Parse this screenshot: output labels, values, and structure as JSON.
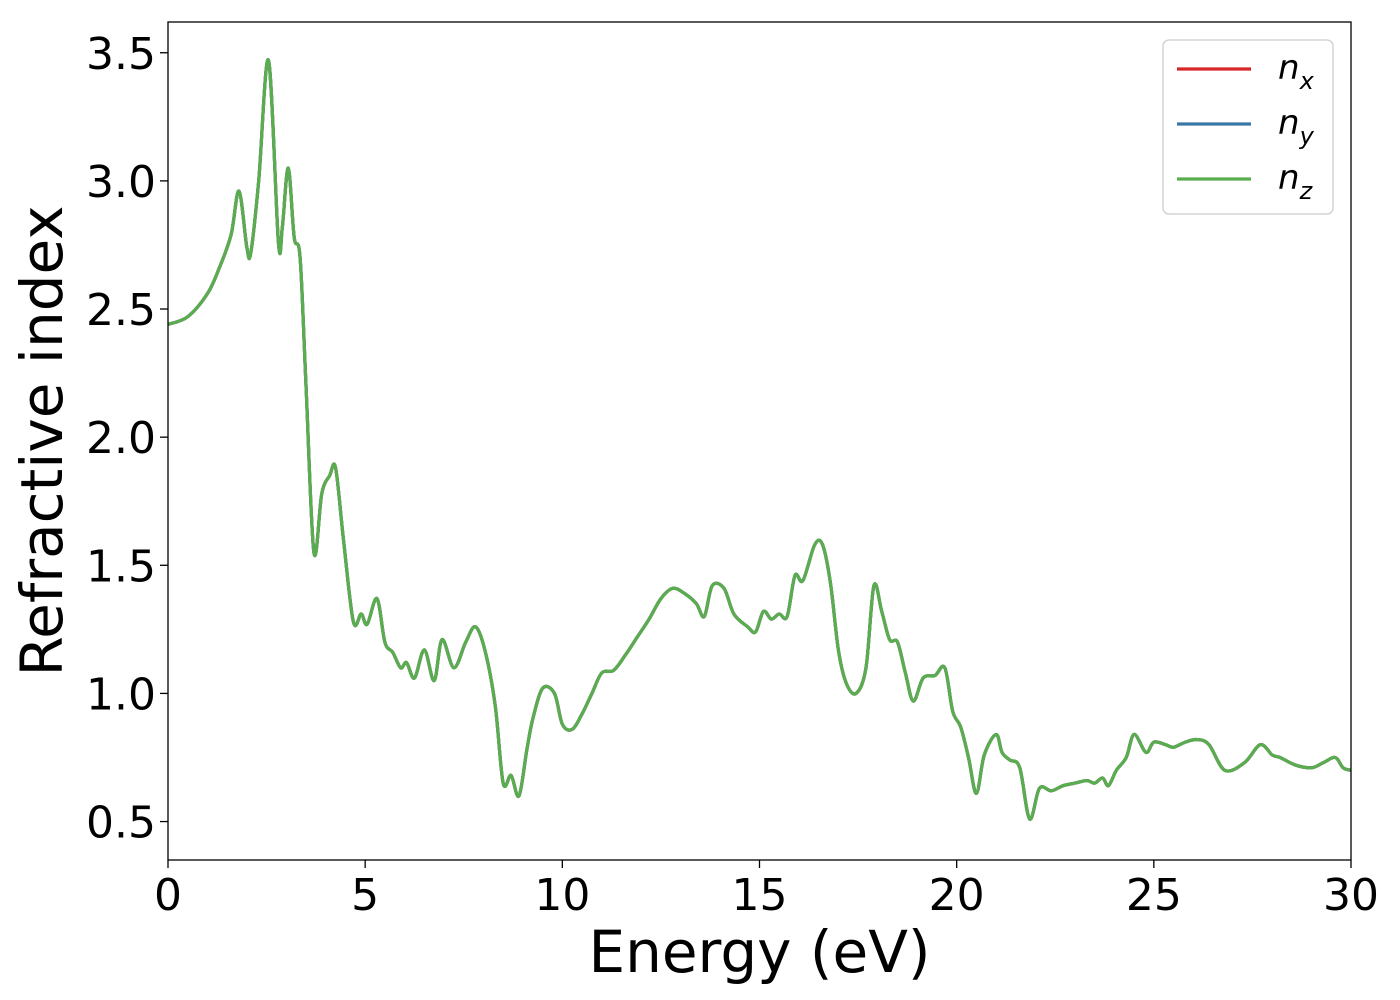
{
  "chart_data": {
    "type": "line",
    "title": "",
    "xlabel": "Energy (eV)",
    "ylabel": "Refractive index",
    "xlim": [
      0,
      30
    ],
    "ylim": [
      0.35,
      3.62
    ],
    "xticks": [
      "0",
      "5",
      "10",
      "15",
      "20",
      "25",
      "30"
    ],
    "yticks": [
      "0.5",
      "1.0",
      "1.5",
      "2.0",
      "2.5",
      "3.0",
      "3.5"
    ],
    "grid": false,
    "legend_position": "top-right",
    "series": [
      {
        "name": "n",
        "subscript": "x",
        "color": "#d62728",
        "x": [
          0,
          0.5,
          1.0,
          1.3,
          1.6,
          1.8,
          2.0,
          2.1,
          2.3,
          2.55,
          2.8,
          2.9,
          3.05,
          3.2,
          3.35,
          3.5,
          3.7,
          3.9,
          4.1,
          4.25,
          4.45,
          4.7,
          4.9,
          5.05,
          5.3,
          5.5,
          5.7,
          5.9,
          6.05,
          6.25,
          6.5,
          6.75,
          6.95,
          7.25,
          7.55,
          7.8,
          8.05,
          8.3,
          8.5,
          8.7,
          8.9,
          9.1,
          9.25,
          9.5,
          9.8,
          10.0,
          10.25,
          10.5,
          10.75,
          11.0,
          11.3,
          11.6,
          11.9,
          12.2,
          12.5,
          12.8,
          13.1,
          13.4,
          13.6,
          13.8,
          14.1,
          14.35,
          14.7,
          14.9,
          15.1,
          15.3,
          15.5,
          15.7,
          15.9,
          16.1,
          16.4,
          16.6,
          16.8,
          17.0,
          17.2,
          17.45,
          17.7,
          17.9,
          18.1,
          18.3,
          18.5,
          18.7,
          18.9,
          19.15,
          19.45,
          19.7,
          19.9,
          20.1,
          20.3,
          20.5,
          20.7,
          21.0,
          21.15,
          21.35,
          21.6,
          21.85,
          22.1,
          22.4,
          22.7,
          23.0,
          23.3,
          23.5,
          23.7,
          23.85,
          24.05,
          24.3,
          24.5,
          24.8,
          25.0,
          25.3,
          25.5,
          25.8,
          26.1,
          26.4,
          26.8,
          27.3,
          27.7,
          28.0,
          28.2,
          28.6,
          29.0,
          29.3,
          29.6,
          29.8,
          30.0
        ],
        "values": [
          2.44,
          2.47,
          2.56,
          2.66,
          2.79,
          2.96,
          2.74,
          2.72,
          3.0,
          3.47,
          2.76,
          2.82,
          3.05,
          2.78,
          2.7,
          2.2,
          1.55,
          1.78,
          1.85,
          1.88,
          1.6,
          1.28,
          1.31,
          1.27,
          1.37,
          1.2,
          1.16,
          1.1,
          1.12,
          1.06,
          1.17,
          1.05,
          1.21,
          1.1,
          1.2,
          1.26,
          1.16,
          0.95,
          0.65,
          0.68,
          0.6,
          0.78,
          0.9,
          1.02,
          1.0,
          0.88,
          0.86,
          0.92,
          1.0,
          1.08,
          1.09,
          1.15,
          1.22,
          1.29,
          1.37,
          1.41,
          1.39,
          1.35,
          1.3,
          1.42,
          1.41,
          1.31,
          1.26,
          1.24,
          1.32,
          1.29,
          1.31,
          1.3,
          1.46,
          1.44,
          1.58,
          1.58,
          1.43,
          1.17,
          1.04,
          1.0,
          1.1,
          1.42,
          1.32,
          1.21,
          1.2,
          1.08,
          0.97,
          1.06,
          1.07,
          1.1,
          0.93,
          0.87,
          0.75,
          0.61,
          0.76,
          0.84,
          0.77,
          0.74,
          0.71,
          0.51,
          0.63,
          0.62,
          0.64,
          0.65,
          0.66,
          0.65,
          0.67,
          0.64,
          0.7,
          0.75,
          0.84,
          0.77,
          0.81,
          0.8,
          0.79,
          0.81,
          0.82,
          0.8,
          0.7,
          0.73,
          0.8,
          0.76,
          0.75,
          0.72,
          0.71,
          0.73,
          0.75,
          0.71,
          0.7
        ]
      },
      {
        "name": "n",
        "subscript": "y",
        "color": "#3a78a8",
        "x": [
          0,
          0.5,
          1.0,
          1.3,
          1.6,
          1.8,
          2.0,
          2.1,
          2.3,
          2.55,
          2.8,
          2.9,
          3.05,
          3.2,
          3.35,
          3.5,
          3.7,
          3.9,
          4.1,
          4.25,
          4.45,
          4.7,
          4.9,
          5.05,
          5.3,
          5.5,
          5.7,
          5.9,
          6.05,
          6.25,
          6.5,
          6.75,
          6.95,
          7.25,
          7.55,
          7.8,
          8.05,
          8.3,
          8.5,
          8.7,
          8.9,
          9.1,
          9.25,
          9.5,
          9.8,
          10.0,
          10.25,
          10.5,
          10.75,
          11.0,
          11.3,
          11.6,
          11.9,
          12.2,
          12.5,
          12.8,
          13.1,
          13.4,
          13.6,
          13.8,
          14.1,
          14.35,
          14.7,
          14.9,
          15.1,
          15.3,
          15.5,
          15.7,
          15.9,
          16.1,
          16.4,
          16.6,
          16.8,
          17.0,
          17.2,
          17.45,
          17.7,
          17.9,
          18.1,
          18.3,
          18.5,
          18.7,
          18.9,
          19.15,
          19.45,
          19.7,
          19.9,
          20.1,
          20.3,
          20.5,
          20.7,
          21.0,
          21.15,
          21.35,
          21.6,
          21.85,
          22.1,
          22.4,
          22.7,
          23.0,
          23.3,
          23.5,
          23.7,
          23.85,
          24.05,
          24.3,
          24.5,
          24.8,
          25.0,
          25.3,
          25.5,
          25.8,
          26.1,
          26.4,
          26.8,
          27.3,
          27.7,
          28.0,
          28.2,
          28.6,
          29.0,
          29.3,
          29.6,
          29.8,
          30.0
        ],
        "values": [
          2.44,
          2.47,
          2.56,
          2.66,
          2.79,
          2.96,
          2.74,
          2.72,
          3.0,
          3.47,
          2.76,
          2.82,
          3.05,
          2.78,
          2.7,
          2.2,
          1.55,
          1.78,
          1.85,
          1.88,
          1.6,
          1.28,
          1.31,
          1.27,
          1.37,
          1.2,
          1.16,
          1.1,
          1.12,
          1.06,
          1.17,
          1.05,
          1.21,
          1.1,
          1.2,
          1.26,
          1.16,
          0.95,
          0.65,
          0.68,
          0.6,
          0.78,
          0.9,
          1.02,
          1.0,
          0.88,
          0.86,
          0.92,
          1.0,
          1.08,
          1.09,
          1.15,
          1.22,
          1.29,
          1.37,
          1.41,
          1.39,
          1.35,
          1.3,
          1.42,
          1.41,
          1.31,
          1.26,
          1.24,
          1.32,
          1.29,
          1.31,
          1.3,
          1.46,
          1.44,
          1.58,
          1.58,
          1.43,
          1.17,
          1.04,
          1.0,
          1.1,
          1.42,
          1.32,
          1.21,
          1.2,
          1.08,
          0.97,
          1.06,
          1.07,
          1.1,
          0.93,
          0.87,
          0.75,
          0.61,
          0.76,
          0.84,
          0.77,
          0.74,
          0.71,
          0.51,
          0.63,
          0.62,
          0.64,
          0.65,
          0.66,
          0.65,
          0.67,
          0.64,
          0.7,
          0.75,
          0.84,
          0.77,
          0.81,
          0.8,
          0.79,
          0.81,
          0.82,
          0.8,
          0.7,
          0.73,
          0.8,
          0.76,
          0.75,
          0.72,
          0.71,
          0.73,
          0.75,
          0.71,
          0.7
        ]
      },
      {
        "name": "n",
        "subscript": "z",
        "color": "#5aad4e",
        "x": [
          0,
          0.5,
          1.0,
          1.3,
          1.6,
          1.8,
          2.0,
          2.1,
          2.3,
          2.55,
          2.8,
          2.9,
          3.05,
          3.2,
          3.35,
          3.5,
          3.7,
          3.9,
          4.1,
          4.25,
          4.45,
          4.7,
          4.9,
          5.05,
          5.3,
          5.5,
          5.7,
          5.9,
          6.05,
          6.25,
          6.5,
          6.75,
          6.95,
          7.25,
          7.55,
          7.8,
          8.05,
          8.3,
          8.5,
          8.7,
          8.9,
          9.1,
          9.25,
          9.5,
          9.8,
          10.0,
          10.25,
          10.5,
          10.75,
          11.0,
          11.3,
          11.6,
          11.9,
          12.2,
          12.5,
          12.8,
          13.1,
          13.4,
          13.6,
          13.8,
          14.1,
          14.35,
          14.7,
          14.9,
          15.1,
          15.3,
          15.5,
          15.7,
          15.9,
          16.1,
          16.4,
          16.6,
          16.8,
          17.0,
          17.2,
          17.45,
          17.7,
          17.9,
          18.1,
          18.3,
          18.5,
          18.7,
          18.9,
          19.15,
          19.45,
          19.7,
          19.9,
          20.1,
          20.3,
          20.5,
          20.7,
          21.0,
          21.15,
          21.35,
          21.6,
          21.85,
          22.1,
          22.4,
          22.7,
          23.0,
          23.3,
          23.5,
          23.7,
          23.85,
          24.05,
          24.3,
          24.5,
          24.8,
          25.0,
          25.3,
          25.5,
          25.8,
          26.1,
          26.4,
          26.8,
          27.3,
          27.7,
          28.0,
          28.2,
          28.6,
          29.0,
          29.3,
          29.6,
          29.8,
          30.0
        ],
        "values": [
          2.44,
          2.47,
          2.56,
          2.66,
          2.79,
          2.96,
          2.74,
          2.72,
          3.0,
          3.47,
          2.76,
          2.82,
          3.05,
          2.78,
          2.7,
          2.2,
          1.55,
          1.78,
          1.85,
          1.88,
          1.6,
          1.28,
          1.31,
          1.27,
          1.37,
          1.2,
          1.16,
          1.1,
          1.12,
          1.06,
          1.17,
          1.05,
          1.21,
          1.1,
          1.2,
          1.26,
          1.16,
          0.95,
          0.65,
          0.68,
          0.6,
          0.78,
          0.9,
          1.02,
          1.0,
          0.88,
          0.86,
          0.92,
          1.0,
          1.08,
          1.09,
          1.15,
          1.22,
          1.29,
          1.37,
          1.41,
          1.39,
          1.35,
          1.3,
          1.42,
          1.41,
          1.31,
          1.26,
          1.24,
          1.32,
          1.29,
          1.31,
          1.3,
          1.46,
          1.44,
          1.58,
          1.58,
          1.43,
          1.17,
          1.04,
          1.0,
          1.1,
          1.42,
          1.32,
          1.21,
          1.2,
          1.08,
          0.97,
          1.06,
          1.07,
          1.1,
          0.93,
          0.87,
          0.75,
          0.61,
          0.76,
          0.84,
          0.77,
          0.74,
          0.71,
          0.51,
          0.63,
          0.62,
          0.64,
          0.65,
          0.66,
          0.65,
          0.67,
          0.64,
          0.7,
          0.75,
          0.84,
          0.77,
          0.81,
          0.8,
          0.79,
          0.81,
          0.82,
          0.8,
          0.7,
          0.73,
          0.8,
          0.76,
          0.75,
          0.72,
          0.71,
          0.73,
          0.75,
          0.71,
          0.7
        ]
      }
    ]
  }
}
